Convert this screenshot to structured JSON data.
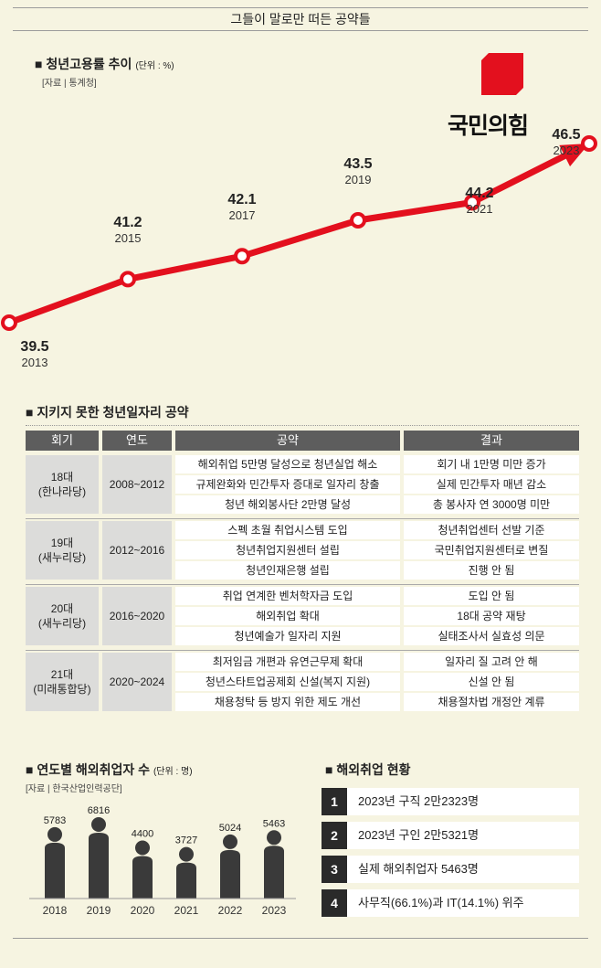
{
  "header_title": "그들이 말로만 떠든 공약들",
  "employment": {
    "title": "청년고용률 추이",
    "unit": "(단위 : %)",
    "source": "[자료 | 통계청]"
  },
  "logo": {
    "text": "국민의힘",
    "color": "#e3101e"
  },
  "chart_data": [
    {
      "type": "line",
      "title": "청년고용률 추이",
      "unit": "%",
      "x": [
        "2013",
        "2015",
        "2017",
        "2019",
        "2021",
        "2023"
      ],
      "values": [
        39.5,
        41.2,
        42.1,
        43.5,
        44.2,
        46.5
      ],
      "labels": [
        "39.5",
        "41.2",
        "42.1",
        "43.5",
        "44.2",
        "46.5"
      ],
      "color": "#e3101e"
    },
    {
      "type": "bar",
      "title": "연도별 해외취업자 수",
      "unit": "명",
      "categories": [
        "2018",
        "2019",
        "2020",
        "2021",
        "2022",
        "2023"
      ],
      "values": [
        5783,
        6816,
        4400,
        3727,
        5024,
        5463
      ],
      "labels": [
        "5783",
        "6816",
        "4400",
        "3727",
        "5024",
        "5463"
      ],
      "color": "#3a3a3a"
    }
  ],
  "pledges": {
    "title": "지키지 못한 청년일자리 공약",
    "headers": [
      "회기",
      "연도",
      "공약",
      "결과"
    ],
    "groups": [
      {
        "session": "18대",
        "party": "(한나라당)",
        "years": "2008~2012",
        "rows": [
          [
            "해외취업 5만명 달성으로 청년실업 해소",
            "회기 내 1만명 미만 증가"
          ],
          [
            "규제완화와 민간투자 증대로 일자리 창출",
            "실제 민간투자 매년 감소"
          ],
          [
            "청년 해외봉사단 2만명 달성",
            "총 봉사자 연 3000명 미만"
          ]
        ]
      },
      {
        "session": "19대",
        "party": "(새누리당)",
        "years": "2012~2016",
        "rows": [
          [
            "스펙 초월 취업시스템 도입",
            "청년취업센터 선발 기준"
          ],
          [
            "청년취업지원센터 설립",
            "국민취업지원센터로 변질"
          ],
          [
            "청년인재은행 설립",
            "진행 안 됨"
          ]
        ]
      },
      {
        "session": "20대",
        "party": "(새누리당)",
        "years": "2016~2020",
        "rows": [
          [
            "취업 연계한 벤처학자금 도입",
            "도입 안 됨"
          ],
          [
            "해외취업 확대",
            "18대 공약 재탕"
          ],
          [
            "청년예술가 일자리 지원",
            "실태조사서 실효성 의문"
          ]
        ]
      },
      {
        "session": "21대",
        "party": "(미래통합당)",
        "years": "2020~2024",
        "rows": [
          [
            "최저임금 개편과 유연근무제 확대",
            "일자리 질 고려 안 해"
          ],
          [
            "청년스타트업공제회 신설(복지 지원)",
            "신설 안 됨"
          ],
          [
            "채용청탁 등 방지 위한 제도 개선",
            "채용절차법 개정안 계류"
          ]
        ]
      }
    ]
  },
  "overseas": {
    "title": "연도별 해외취업자 수",
    "unit": "(단위 : 명)",
    "source": "[자료 | 한국산업인력공단]"
  },
  "status": {
    "title": "해외취업 현황",
    "items": [
      {
        "num": "1",
        "text": "2023년 구직 2만2323명"
      },
      {
        "num": "2",
        "text": "2023년 구인 2만5321명"
      },
      {
        "num": "3",
        "text": "실제 해외취업자 5463명"
      },
      {
        "num": "4",
        "text": "사무직(66.1%)과 IT(14.1%) 위주"
      }
    ]
  }
}
